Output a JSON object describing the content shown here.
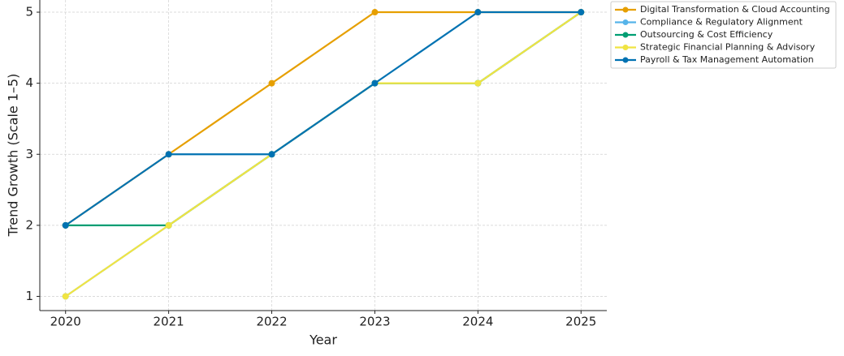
{
  "chart_data": {
    "type": "line",
    "x_label": "Year",
    "y_label": "Trend Growth (Scale 1–5)",
    "x": [
      2020,
      2021,
      2022,
      2023,
      2024,
      2025
    ],
    "series": [
      {
        "name": "Digital Transformation & Cloud Accounting",
        "color": "#E69F00",
        "values": [
          2,
          3,
          4,
          5,
          5,
          5
        ]
      },
      {
        "name": "Compliance & Regulatory Alignment",
        "color": "#56B4E9",
        "values": [
          1,
          2,
          3,
          4,
          4,
          5
        ]
      },
      {
        "name": "Outsourcing & Cost Efficiency",
        "color": "#009E73",
        "values": [
          2,
          2,
          3,
          4,
          4,
          5
        ]
      },
      {
        "name": "Strategic Financial Planning & Advisory",
        "color": "#F0E442",
        "values": [
          1,
          2,
          3,
          4,
          4,
          5
        ]
      },
      {
        "name": "Payroll & Tax Management Automation",
        "color": "#0072B2",
        "values": [
          2,
          3,
          3,
          4,
          5,
          5
        ]
      }
    ],
    "xlim": [
      2019.75,
      2025.25
    ],
    "xticks": [
      2020,
      2021,
      2022,
      2023,
      2024,
      2025
    ],
    "ylim": [
      0.8,
      5.2
    ],
    "yticks": [
      1,
      2,
      3,
      4,
      5
    ],
    "grid": true
  }
}
